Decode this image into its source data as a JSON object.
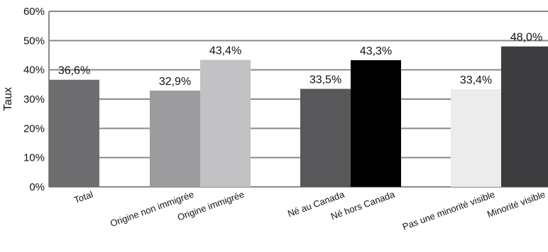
{
  "chart_data": {
    "type": "bar",
    "title": "",
    "xlabel": "",
    "ylabel": "Taux",
    "ylim": [
      0,
      60
    ],
    "yticks": [
      "0%",
      "10%",
      "20%",
      "30%",
      "40%",
      "50%",
      "60%"
    ],
    "ytick_values": [
      0,
      10,
      20,
      30,
      40,
      50,
      60
    ],
    "grid": true,
    "categories": [
      "Total",
      "Origine non immigrée",
      "Origine immigrée",
      "Né au Canada",
      "Né hors Canada",
      "Pas une minorité visible",
      "Minorité visible"
    ],
    "values": [
      36.6,
      32.9,
      43.4,
      33.5,
      43.3,
      33.4,
      48.0
    ],
    "value_labels": [
      "36,6%",
      "32,9%",
      "43,4%",
      "33,5%",
      "43,3%",
      "33,4%",
      "48,0%"
    ],
    "colors": [
      "#6e6e70",
      "#9c9c9e",
      "#c2c2c4",
      "#58585a",
      "#000000",
      "#ececec",
      "#3d3d3f"
    ]
  }
}
